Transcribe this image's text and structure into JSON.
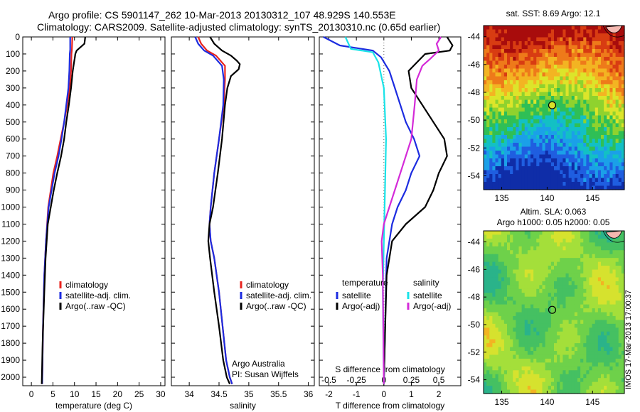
{
  "header": {
    "line1": "Argo profile: CS 5901147_262 10-Mar-2013 20130312_107 48.929S 140.553E",
    "line2": "Climatology: CARS2009. Satellite-adjusted climatology: synTS_20130310.nc (0.65d earlier)"
  },
  "stamp": "IMOS 17-Mar-2013 17:00:37",
  "colors": {
    "climatology": "#e8231e",
    "satellite": "#1c2ce0",
    "argo": "#000000",
    "sat_s": "#19e3e8",
    "argo_s": "#d42ad8",
    "zero_line": "#666666"
  },
  "chart_data": [
    {
      "type": "line",
      "id": "temperature",
      "xlabel": "temperature (deg C)",
      "ylabel": "",
      "xlim": [
        -2,
        31
      ],
      "ylim": [
        2050,
        0
      ],
      "xticks": [
        0,
        5,
        10,
        15,
        20,
        25,
        30
      ],
      "yticks": [
        0,
        100,
        200,
        300,
        400,
        500,
        600,
        700,
        800,
        900,
        1000,
        1100,
        1200,
        1300,
        1400,
        1500,
        1600,
        1700,
        1800,
        1900,
        2000
      ],
      "legend": [
        "climatology",
        "satellite-adj. clim.",
        "Argo(..raw -QC)"
      ],
      "legend_position": "center-right",
      "series": [
        {
          "name": "climatology",
          "color_key": "climatology",
          "x": [
            9.5,
            9.4,
            9.3,
            9.2,
            8.9,
            8.3,
            7.6,
            6.8,
            6.0,
            5.1,
            4.5,
            3.9,
            3.4,
            3.0,
            2.7,
            2.5
          ],
          "y": [
            0,
            75,
            100,
            200,
            300,
            400,
            500,
            600,
            700,
            800,
            900,
            1000,
            1200,
            1400,
            1700,
            2040
          ]
        },
        {
          "name": "satellite-adj. clim.",
          "color_key": "satellite",
          "x": [
            9.0,
            9.0,
            8.9,
            8.8,
            8.6,
            8.1,
            7.6,
            7.0,
            6.3,
            5.4,
            4.7,
            4.0,
            3.4,
            3.0,
            2.7,
            2.5
          ],
          "y": [
            0,
            75,
            100,
            200,
            300,
            400,
            500,
            600,
            700,
            800,
            900,
            1000,
            1200,
            1400,
            1700,
            2040
          ]
        },
        {
          "name": "Argo(..raw -QC)",
          "color_key": "argo",
          "x": [
            12.5,
            12.3,
            10.5,
            10.2,
            10.1,
            9.9,
            9.6,
            9.2,
            8.7,
            8.1,
            7.6,
            6.9,
            6.0,
            5.2,
            4.5,
            3.8,
            3.3,
            3.0,
            2.6,
            2.4
          ],
          "y": [
            0,
            40,
            80,
            100,
            120,
            150,
            200,
            300,
            400,
            500,
            600,
            700,
            800,
            900,
            1000,
            1100,
            1300,
            1500,
            1800,
            2040
          ]
        }
      ]
    },
    {
      "type": "line",
      "id": "salinity",
      "xlabel": "salinity",
      "ylabel": "",
      "xlim": [
        33.7,
        36.1
      ],
      "ylim": [
        2050,
        0
      ],
      "xticks": [
        34,
        34.5,
        35,
        35.5,
        36
      ],
      "legend": [
        "climatology",
        "satellite-adj. clim.",
        "Argo(..raw -QC)"
      ],
      "legend_position": "center-right",
      "annotation": [
        "Argo Australia",
        "PI: Susan Wijffels"
      ],
      "series": [
        {
          "name": "climatology",
          "color_key": "climatology",
          "x": [
            34.15,
            34.2,
            34.3,
            34.45,
            34.6,
            34.6,
            34.58,
            34.5,
            34.42,
            34.36,
            34.34,
            34.36,
            34.42,
            34.5,
            34.56,
            34.62,
            34.68,
            34.72
          ],
          "y": [
            0,
            40,
            80,
            110,
            170,
            250,
            400,
            600,
            800,
            1000,
            1100,
            1200,
            1300,
            1500,
            1700,
            1900,
            2000,
            2040
          ]
        },
        {
          "name": "satellite-adj. clim.",
          "color_key": "satellite",
          "x": [
            34.1,
            34.15,
            34.25,
            34.4,
            34.55,
            34.58,
            34.57,
            34.5,
            34.42,
            34.36,
            34.34,
            34.36,
            34.42,
            34.5,
            34.56,
            34.62,
            34.68,
            34.72
          ],
          "y": [
            0,
            40,
            80,
            110,
            170,
            250,
            400,
            600,
            800,
            1000,
            1100,
            1200,
            1300,
            1500,
            1700,
            1900,
            2000,
            2040
          ]
        },
        {
          "name": "Argo(..raw -QC)",
          "color_key": "argo",
          "x": [
            34.35,
            34.42,
            34.55,
            34.7,
            34.8,
            34.85,
            34.83,
            34.7,
            34.64,
            34.6,
            34.55,
            34.48,
            34.4,
            34.34,
            34.32,
            34.35,
            34.42,
            34.5,
            34.57,
            34.63,
            34.68
          ],
          "y": [
            0,
            40,
            80,
            110,
            140,
            160,
            190,
            230,
            300,
            400,
            600,
            800,
            1000,
            1100,
            1200,
            1300,
            1500,
            1700,
            1900,
            2000,
            2040
          ]
        }
      ]
    },
    {
      "type": "line",
      "id": "differences",
      "xlabel": "T difference from climatology",
      "x2label": "S difference from climatology",
      "ylabel": "",
      "xlim": [
        -2.35,
        2.8
      ],
      "ylim": [
        2050,
        0
      ],
      "xticks": [
        -2,
        -1,
        0,
        1,
        2
      ],
      "x2ticks": [
        -0.5,
        -0.25,
        0,
        0.25,
        0.5
      ],
      "legend_t_title": "temperature",
      "legend_s_title": "salinity",
      "legend_t": [
        "satellite",
        "Argo(-adj)"
      ],
      "legend_s": [
        "satellite",
        "Argo(-adj)"
      ],
      "series": [
        {
          "name": "satellite",
          "quantity": "T",
          "color_key": "satellite",
          "x": [
            -2.2,
            -1.6,
            -0.4,
            -0.1,
            0.2,
            0.4,
            0.6,
            0.8,
            1.1,
            1.3,
            1.0,
            0.8,
            0.5,
            0.3,
            0.1,
            0.0
          ],
          "y": [
            0,
            50,
            80,
            120,
            200,
            300,
            400,
            500,
            600,
            700,
            800,
            900,
            1000,
            1100,
            1300,
            2040
          ]
        },
        {
          "name": "Argo(-adj)",
          "quantity": "T",
          "color_key": "argo",
          "x": [
            2.3,
            2.5,
            2.4,
            1.5,
            1.2,
            0.9,
            1.0,
            1.4,
            1.8,
            2.2,
            2.3,
            2.0,
            1.8,
            1.5,
            0.8,
            0.3,
            0.1,
            0.05,
            0.0
          ],
          "y": [
            0,
            50,
            80,
            100,
            150,
            200,
            300,
            400,
            500,
            600,
            700,
            800,
            900,
            1000,
            1100,
            1200,
            1400,
            1700,
            2040
          ]
        },
        {
          "name": "satellite",
          "quantity": "S",
          "color_key": "sat_s",
          "x": [
            -0.35,
            -0.3,
            -0.1,
            -0.05,
            0.0,
            0.02,
            0.01,
            0.0,
            -0.01,
            0.0
          ],
          "y": [
            0,
            70,
            90,
            150,
            300,
            600,
            900,
            1200,
            1500,
            2040
          ]
        },
        {
          "name": "Argo(-adj)",
          "quantity": "S",
          "color_key": "argo_s",
          "x": [
            0.52,
            0.48,
            0.5,
            0.42,
            0.35,
            0.3,
            0.28,
            0.25,
            0.15,
            0.05,
            0.0,
            -0.02,
            -0.01,
            0.0
          ],
          "y": [
            0,
            40,
            80,
            130,
            170,
            250,
            400,
            600,
            800,
            1000,
            1100,
            1200,
            1400,
            2040
          ]
        }
      ]
    },
    {
      "type": "heatmap",
      "id": "sst-map",
      "title": "sat. SST: 8.69 Argo: 12.1",
      "xlim": [
        133,
        148.5
      ],
      "ylim": [
        -55,
        -43.2
      ],
      "xticks": [
        135,
        140,
        145
      ],
      "yticks": [
        -44,
        -46,
        -48,
        -50,
        -52,
        -54
      ],
      "marker": {
        "lon": 140.553,
        "lat": -48.929
      },
      "palette": [
        "#0f2da8",
        "#1f5ee0",
        "#1ba0e8",
        "#13c0c4",
        "#2fbf56",
        "#8fd22e",
        "#dce52a",
        "#f3b422",
        "#ee7a1a",
        "#d83c12",
        "#a80c0c"
      ]
    },
    {
      "type": "heatmap",
      "id": "sla-map",
      "title": "Altim. SLA: 0.063",
      "subtitle": "Argo h1000: 0.05 h2000: 0.05",
      "xlim": [
        133,
        148.5
      ],
      "ylim": [
        -55,
        -43.2
      ],
      "xticks": [
        135,
        140,
        145
      ],
      "yticks": [
        -44,
        -46,
        -48,
        -50,
        -52,
        -54
      ],
      "marker": {
        "lon": 140.553,
        "lat": -48.929
      },
      "palette": [
        "#1f9aa0",
        "#2ab38a",
        "#45c062",
        "#6ed14a",
        "#a4df3a",
        "#d6e22e",
        "#f2b422"
      ]
    }
  ]
}
